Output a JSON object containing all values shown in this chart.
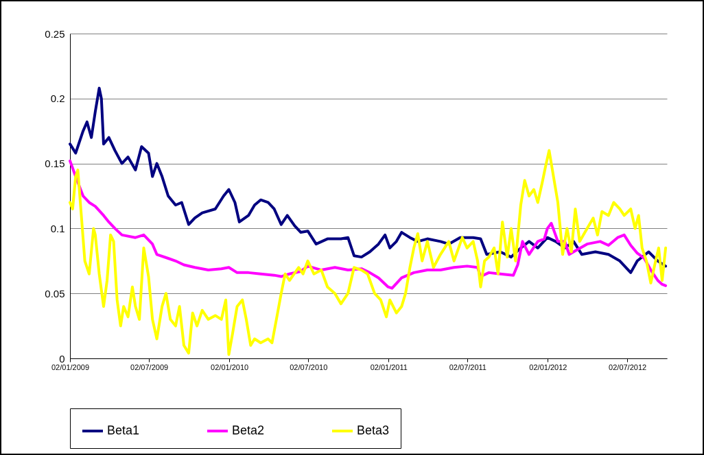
{
  "chart_data": {
    "type": "line",
    "xlim": [
      "2009-01-02",
      "2012-10-01"
    ],
    "ylim": [
      0,
      0.25
    ],
    "yticks": [
      0,
      0.05,
      0.1,
      0.15,
      0.2,
      0.25
    ],
    "xticks": [
      {
        "value": "2009-01-02",
        "label": "02/01/2009"
      },
      {
        "value": "2009-07-02",
        "label": "02/07/2009"
      },
      {
        "value": "2010-01-02",
        "label": "02/01/2010"
      },
      {
        "value": "2010-07-02",
        "label": "02/07/2010"
      },
      {
        "value": "2011-01-02",
        "label": "02/01/2011"
      },
      {
        "value": "2011-07-02",
        "label": "02/07/2011"
      },
      {
        "value": "2012-01-02",
        "label": "02/01/2012"
      },
      {
        "value": "2012-07-02",
        "label": "02/07/2012"
      }
    ],
    "grid": "y",
    "legend": "bottom",
    "marker": "none",
    "line_style": "solid",
    "series": [
      {
        "name": "Beta1",
        "color": "#000080",
        "x": [
          "2009-01-02",
          "2009-01-15",
          "2009-02-01",
          "2009-02-10",
          "2009-02-20",
          "2009-03-01",
          "2009-03-10",
          "2009-03-15",
          "2009-03-20",
          "2009-04-01",
          "2009-04-15",
          "2009-05-01",
          "2009-05-15",
          "2009-06-01",
          "2009-06-15",
          "2009-07-01",
          "2009-07-10",
          "2009-07-20",
          "2009-08-01",
          "2009-08-15",
          "2009-09-01",
          "2009-09-15",
          "2009-10-01",
          "2009-10-15",
          "2009-11-01",
          "2009-12-01",
          "2009-12-20",
          "2010-01-01",
          "2010-01-15",
          "2010-01-25",
          "2010-02-15",
          "2010-03-01",
          "2010-03-15",
          "2010-04-01",
          "2010-04-15",
          "2010-05-01",
          "2010-05-15",
          "2010-06-01",
          "2010-06-15",
          "2010-07-01",
          "2010-07-20",
          "2010-08-15",
          "2010-09-15",
          "2010-10-01",
          "2010-10-15",
          "2010-11-01",
          "2010-11-20",
          "2010-12-10",
          "2010-12-25",
          "2011-01-05",
          "2011-01-20",
          "2011-02-01",
          "2011-02-20",
          "2011-03-10",
          "2011-04-01",
          "2011-05-01",
          "2011-05-20",
          "2011-06-15",
          "2011-07-15",
          "2011-08-01",
          "2011-08-15",
          "2011-09-15",
          "2011-10-10",
          "2011-11-01",
          "2011-11-20",
          "2011-12-10",
          "2012-01-01",
          "2012-01-20",
          "2012-02-10",
          "2012-03-01",
          "2012-03-20",
          "2012-04-20",
          "2012-05-20",
          "2012-06-15",
          "2012-07-10",
          "2012-07-25",
          "2012-08-20",
          "2012-09-10",
          "2012-09-28"
        ],
        "values": [
          0.165,
          0.158,
          0.175,
          0.182,
          0.17,
          0.19,
          0.208,
          0.2,
          0.165,
          0.17,
          0.16,
          0.15,
          0.155,
          0.145,
          0.163,
          0.158,
          0.14,
          0.15,
          0.14,
          0.125,
          0.118,
          0.12,
          0.103,
          0.108,
          0.112,
          0.115,
          0.125,
          0.13,
          0.12,
          0.105,
          0.11,
          0.118,
          0.122,
          0.12,
          0.115,
          0.103,
          0.11,
          0.102,
          0.097,
          0.098,
          0.088,
          0.092,
          0.092,
          0.093,
          0.079,
          0.078,
          0.082,
          0.088,
          0.095,
          0.085,
          0.09,
          0.097,
          0.093,
          0.09,
          0.092,
          0.09,
          0.088,
          0.093,
          0.093,
          0.092,
          0.08,
          0.082,
          0.078,
          0.085,
          0.09,
          0.085,
          0.093,
          0.09,
          0.085,
          0.09,
          0.08,
          0.082,
          0.08,
          0.075,
          0.066,
          0.075,
          0.082,
          0.075,
          0.071
        ]
      },
      {
        "name": "Beta2",
        "color": "#ff00ff",
        "x": [
          "2009-01-02",
          "2009-01-15",
          "2009-02-01",
          "2009-02-15",
          "2009-03-01",
          "2009-03-20",
          "2009-04-01",
          "2009-04-15",
          "2009-05-01",
          "2009-06-01",
          "2009-06-20",
          "2009-07-10",
          "2009-07-20",
          "2009-08-15",
          "2009-09-01",
          "2009-09-20",
          "2009-10-15",
          "2009-11-15",
          "2009-12-15",
          "2010-01-01",
          "2010-01-20",
          "2010-02-15",
          "2010-03-15",
          "2010-04-15",
          "2010-05-01",
          "2010-05-20",
          "2010-06-15",
          "2010-07-01",
          "2010-08-01",
          "2010-09-01",
          "2010-10-01",
          "2010-11-01",
          "2010-11-20",
          "2010-12-10",
          "2011-01-01",
          "2011-01-10",
          "2011-02-01",
          "2011-03-01",
          "2011-04-01",
          "2011-05-01",
          "2011-06-01",
          "2011-07-01",
          "2011-07-25",
          "2011-08-01",
          "2011-08-20",
          "2011-09-15",
          "2011-10-15",
          "2011-10-25",
          "2011-11-05",
          "2011-11-20",
          "2011-12-10",
          "2011-12-25",
          "2012-01-01",
          "2012-01-10",
          "2012-01-25",
          "2012-02-10",
          "2012-02-20",
          "2012-03-01",
          "2012-04-01",
          "2012-05-01",
          "2012-05-20",
          "2012-06-10",
          "2012-06-25",
          "2012-07-10",
          "2012-07-25",
          "2012-08-10",
          "2012-08-25",
          "2012-09-10",
          "2012-09-20",
          "2012-09-28"
        ],
        "values": [
          0.152,
          0.14,
          0.125,
          0.12,
          0.117,
          0.11,
          0.105,
          0.1,
          0.095,
          0.093,
          0.095,
          0.088,
          0.08,
          0.077,
          0.075,
          0.072,
          0.07,
          0.068,
          0.069,
          0.07,
          0.066,
          0.066,
          0.065,
          0.064,
          0.063,
          0.065,
          0.067,
          0.071,
          0.068,
          0.07,
          0.068,
          0.069,
          0.066,
          0.062,
          0.055,
          0.054,
          0.062,
          0.066,
          0.068,
          0.068,
          0.07,
          0.071,
          0.07,
          0.063,
          0.066,
          0.065,
          0.064,
          0.072,
          0.09,
          0.08,
          0.09,
          0.092,
          0.1,
          0.104,
          0.09,
          0.09,
          0.08,
          0.082,
          0.088,
          0.09,
          0.087,
          0.093,
          0.095,
          0.087,
          0.081,
          0.077,
          0.068,
          0.06,
          0.057,
          0.056
        ]
      },
      {
        "name": "Beta3",
        "color": "#ffff00",
        "x": [
          "2009-01-02",
          "2009-01-08",
          "2009-01-15",
          "2009-01-20",
          "2009-01-28",
          "2009-02-05",
          "2009-02-15",
          "2009-02-25",
          "2009-03-01",
          "2009-03-10",
          "2009-03-20",
          "2009-03-28",
          "2009-04-05",
          "2009-04-12",
          "2009-04-20",
          "2009-04-28",
          "2009-05-05",
          "2009-05-15",
          "2009-05-25",
          "2009-06-01",
          "2009-06-10",
          "2009-06-20",
          "2009-07-01",
          "2009-07-10",
          "2009-07-20",
          "2009-08-01",
          "2009-08-10",
          "2009-08-20",
          "2009-09-01",
          "2009-09-10",
          "2009-09-20",
          "2009-10-01",
          "2009-10-10",
          "2009-10-20",
          "2009-11-01",
          "2009-11-15",
          "2009-12-01",
          "2009-12-15",
          "2009-12-25",
          "2010-01-01",
          "2010-01-10",
          "2010-01-20",
          "2010-02-01",
          "2010-02-10",
          "2010-02-20",
          "2010-03-01",
          "2010-03-15",
          "2010-04-01",
          "2010-04-10",
          "2010-04-20",
          "2010-05-01",
          "2010-05-10",
          "2010-05-20",
          "2010-06-10",
          "2010-06-20",
          "2010-07-01",
          "2010-07-15",
          "2010-08-01",
          "2010-08-15",
          "2010-09-01",
          "2010-09-15",
          "2010-10-01",
          "2010-10-15",
          "2010-11-01",
          "2010-11-15",
          "2010-12-01",
          "2010-12-15",
          "2010-12-28",
          "2011-01-05",
          "2011-01-20",
          "2011-02-01",
          "2011-02-10",
          "2011-02-20",
          "2011-03-01",
          "2011-03-10",
          "2011-03-20",
          "2011-04-01",
          "2011-04-15",
          "2011-05-01",
          "2011-05-20",
          "2011-06-01",
          "2011-06-20",
          "2011-07-01",
          "2011-07-15",
          "2011-07-25",
          "2011-08-01",
          "2011-08-10",
          "2011-08-20",
          "2011-09-01",
          "2011-09-10",
          "2011-09-20",
          "2011-10-01",
          "2011-10-10",
          "2011-10-20",
          "2011-11-01",
          "2011-11-10",
          "2011-11-20",
          "2011-12-01",
          "2011-12-10",
          "2011-12-20",
          "2011-12-28",
          "2012-01-05",
          "2012-01-15",
          "2012-01-25",
          "2012-02-05",
          "2012-02-15",
          "2012-02-25",
          "2012-03-05",
          "2012-03-15",
          "2012-04-01",
          "2012-04-15",
          "2012-04-25",
          "2012-05-05",
          "2012-05-20",
          "2012-06-01",
          "2012-06-15",
          "2012-06-25",
          "2012-07-10",
          "2012-07-20",
          "2012-07-28",
          "2012-08-05",
          "2012-08-15",
          "2012-08-25",
          "2012-09-05",
          "2012-09-12",
          "2012-09-20",
          "2012-09-28"
        ],
        "values": [
          0.12,
          0.115,
          0.14,
          0.145,
          0.11,
          0.075,
          0.065,
          0.1,
          0.095,
          0.065,
          0.04,
          0.06,
          0.095,
          0.09,
          0.045,
          0.025,
          0.04,
          0.032,
          0.055,
          0.04,
          0.03,
          0.085,
          0.063,
          0.03,
          0.015,
          0.04,
          0.05,
          0.03,
          0.025,
          0.04,
          0.01,
          0.004,
          0.035,
          0.025,
          0.037,
          0.03,
          0.033,
          0.03,
          0.045,
          0.003,
          0.02,
          0.04,
          0.045,
          0.03,
          0.01,
          0.015,
          0.012,
          0.015,
          0.012,
          0.03,
          0.05,
          0.065,
          0.06,
          0.07,
          0.065,
          0.075,
          0.065,
          0.068,
          0.055,
          0.05,
          0.042,
          0.05,
          0.07,
          0.068,
          0.065,
          0.05,
          0.045,
          0.032,
          0.045,
          0.035,
          0.04,
          0.05,
          0.07,
          0.085,
          0.096,
          0.075,
          0.09,
          0.07,
          0.08,
          0.09,
          0.075,
          0.093,
          0.085,
          0.09,
          0.075,
          0.055,
          0.075,
          0.078,
          0.085,
          0.065,
          0.105,
          0.078,
          0.1,
          0.075,
          0.118,
          0.137,
          0.125,
          0.13,
          0.12,
          0.135,
          0.148,
          0.16,
          0.14,
          0.12,
          0.08,
          0.1,
          0.082,
          0.115,
          0.09,
          0.1,
          0.108,
          0.095,
          0.113,
          0.11,
          0.12,
          0.115,
          0.11,
          0.115,
          0.1,
          0.11,
          0.085,
          0.075,
          0.058,
          0.075,
          0.085,
          0.06,
          0.085
        ]
      }
    ]
  }
}
